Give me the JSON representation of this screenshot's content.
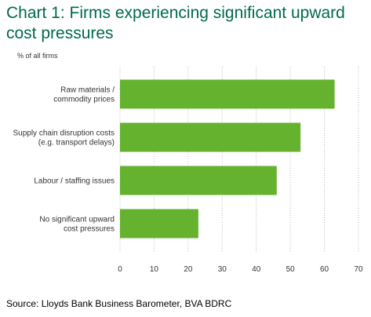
{
  "chart_data": {
    "type": "bar",
    "orientation": "horizontal",
    "title": "Chart 1: Firms experiencing significant upward cost pressures",
    "unit_label": "% of all firms",
    "categories": [
      [
        "Raw materials /",
        "commodity prices"
      ],
      [
        "Supply chain disruption costs",
        "(e.g. transport delays)"
      ],
      [
        "Labour / staffing issues"
      ],
      [
        "No significant upward",
        "cost pressures"
      ]
    ],
    "values": [
      63,
      53,
      46,
      23
    ],
    "xlim": [
      0,
      70
    ],
    "xticks": [
      0,
      10,
      20,
      30,
      40,
      50,
      60,
      70
    ],
    "grid": "vertical dotted",
    "bar_color": "#64b22e",
    "title_color": "#006a4d"
  },
  "source": "Source: Lloyds Bank Business Barometer, BVA BDRC"
}
